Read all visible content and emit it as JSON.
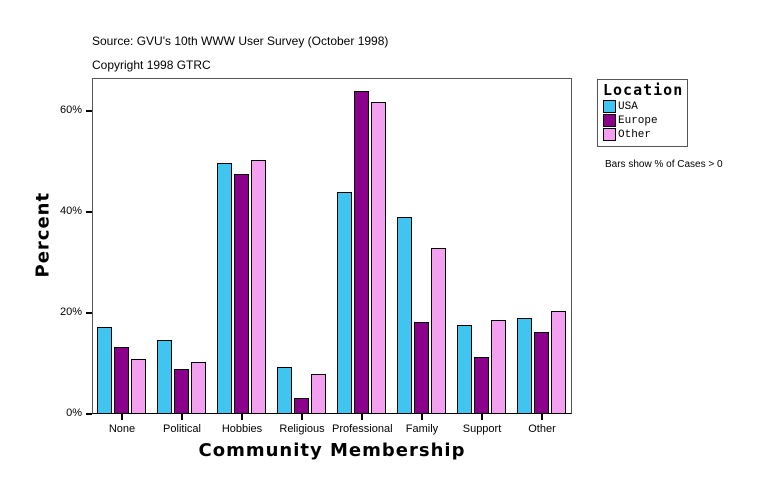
{
  "header": {
    "source": "Source: GVU's 10th WWW User Survey (October 1998)",
    "copyright": "Copyright 1998 GTRC"
  },
  "legend": {
    "title": "Location",
    "items": [
      {
        "label": "USA",
        "color": "#40C4F0"
      },
      {
        "label": "Europe",
        "color": "#8B008B"
      },
      {
        "label": "Other",
        "color": "#F4A0F0"
      }
    ]
  },
  "note": "Bars show % of Cases > 0",
  "axes": {
    "ylabel": "Percent",
    "xlabel": "Community Membership",
    "yticks": [
      "0%",
      "20%",
      "40%",
      "60%"
    ]
  },
  "chart_data": {
    "type": "bar",
    "title": "",
    "xlabel": "Community Membership",
    "ylabel": "Percent",
    "ylim": [
      0,
      66
    ],
    "categories": [
      "None",
      "Political",
      "Hobbies",
      "Religious",
      "Professional",
      "Family",
      "Support",
      "Other"
    ],
    "series": [
      {
        "name": "USA",
        "color": "#40C4F0",
        "values": [
          17.2,
          14.6,
          49.8,
          9.4,
          43.9,
          39.1,
          17.6,
          19.1
        ]
      },
      {
        "name": "Europe",
        "color": "#8B008B",
        "values": [
          13.3,
          8.9,
          47.5,
          3.2,
          63.9,
          18.2,
          11.2,
          16.2
        ]
      },
      {
        "name": "Other",
        "color": "#F4A0F0",
        "values": [
          10.9,
          10.3,
          50.2,
          7.9,
          61.7,
          32.9,
          18.6,
          20.3
        ]
      }
    ],
    "yticks": [
      0,
      20,
      40,
      60
    ],
    "ytick_labels": [
      "0%",
      "20%",
      "40%",
      "60%"
    ],
    "legend_title": "Location",
    "legend_position": "right",
    "grid": false,
    "annotations": [
      "Source: GVU's 10th WWW User Survey (October 1998)",
      "Copyright 1998 GTRC",
      "Bars show % of Cases > 0"
    ]
  }
}
